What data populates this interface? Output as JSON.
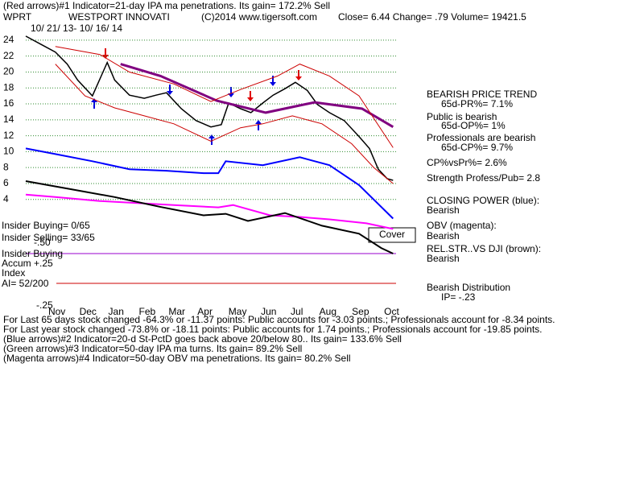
{
  "chart_data": {
    "type": "line",
    "subtitle": "(Red arrows)#1 Indicator=21-day IPA ma penetrations. Its gain= 172.2% Sell",
    "ticker": "WPRT",
    "title": "WESTPORT INNOVATI",
    "copyright": "(C)2014 www.tigersoft.com",
    "quote": "Close=  6.44  Change= .79 Volume= 19421.5",
    "date_range": "10/ 21/ 13- 10/ 16/ 14",
    "ylim": [
      -3,
      25
    ],
    "yticks": [
      24,
      22,
      20,
      18,
      16,
      14,
      12,
      10,
      8,
      6,
      4
    ],
    "xlim": [
      0,
      250
    ],
    "xticks": [
      {
        "value": 21,
        "label": "Nov"
      },
      {
        "value": 42,
        "label": "Dec"
      },
      {
        "value": 61,
        "label": "Jan"
      },
      {
        "value": 82,
        "label": "Feb"
      },
      {
        "value": 102,
        "label": "Mar"
      },
      {
        "value": 121,
        "label": "Apr"
      },
      {
        "value": 143,
        "label": "May"
      },
      {
        "value": 164,
        "label": "Jun"
      },
      {
        "value": 183,
        "label": "Jul"
      },
      {
        "value": 204,
        "label": "Aug"
      },
      {
        "value": 226,
        "label": "Sep"
      },
      {
        "value": 247,
        "label": "Oct"
      }
    ],
    "grid": true,
    "series": [
      {
        "color": "#000000",
        "width": 1.5,
        "x": [
          0,
          10,
          20,
          28,
          35,
          45,
          55,
          60,
          70,
          80,
          88,
          95,
          105,
          115,
          125,
          132,
          137,
          145,
          152,
          160,
          167,
          175,
          182,
          190,
          197,
          205,
          215,
          225,
          232,
          238,
          244,
          248
        ],
        "values": [
          24.5,
          23.5,
          22.5,
          21,
          19,
          17,
          21.2,
          19,
          17.1,
          16.7,
          17.1,
          17.4,
          15.4,
          13.9,
          13.1,
          13.4,
          16.1,
          15.4,
          14.9,
          16.1,
          17.1,
          17.9,
          18.7,
          17.7,
          15.9,
          14.9,
          13.9,
          11.9,
          10.4,
          7.8,
          6.6,
          6.4
        ]
      },
      {
        "color": "#800080",
        "width": 3,
        "x": [
          64,
          91,
          129,
          162,
          195,
          227,
          248
        ],
        "values": [
          21,
          19.5,
          16.4,
          14.9,
          16.2,
          15.4,
          13.1
        ]
      },
      {
        "color": "#cc0000",
        "width": 1,
        "x": [
          20,
          50,
          70,
          100,
          125,
          145,
          170,
          185,
          205,
          225,
          248
        ],
        "values": [
          23.2,
          22.2,
          20,
          18.5,
          16.3,
          17.8,
          19.5,
          21,
          19.5,
          17,
          10.5
        ]
      },
      {
        "color": "#cc0000",
        "width": 1,
        "x": [
          20,
          40,
          60,
          80,
          100,
          125,
          145,
          160,
          180,
          200,
          220,
          235,
          248
        ],
        "values": [
          21,
          17,
          15.5,
          14.5,
          13.5,
          11.3,
          13,
          13.5,
          14.5,
          13.5,
          11,
          8,
          6
        ]
      },
      {
        "color": "#0000ff",
        "width": 2,
        "x": [
          0,
          20,
          45,
          70,
          95,
          120,
          130,
          135,
          160,
          185,
          205,
          225,
          248
        ],
        "values": [
          10.4,
          9.7,
          8.8,
          7.8,
          7.6,
          7.3,
          7.3,
          8.8,
          8.3,
          9.3,
          8.3,
          5.8,
          1.6
        ]
      },
      {
        "color": "#ff00ff",
        "width": 2,
        "x": [
          0,
          20,
          50,
          100,
          130,
          140,
          165,
          185,
          205,
          230,
          248
        ],
        "values": [
          4.6,
          4.3,
          3.8,
          3.3,
          3.0,
          3.3,
          2.0,
          1.8,
          1.5,
          1.0,
          0.3
        ]
      },
      {
        "color": "#000000",
        "width": 2,
        "x": [
          0,
          30,
          60,
          90,
          120,
          135,
          150,
          175,
          200,
          225,
          240,
          248
        ],
        "values": [
          6.3,
          5.3,
          4.3,
          3.1,
          2.0,
          2.2,
          1.3,
          2.3,
          0.7,
          -0.3,
          -2.1,
          -2.8
        ]
      }
    ],
    "right_panel": [
      "BEARISH PRICE TREND",
      "65d-PR%= 7.1%",
      "Public is bearish",
      "65d-OP%= 1%",
      "Professionals are bearish",
      "65d-CP%= 9.7%",
      "CP%vsPr%=  2.6%",
      "Strength Profess/Pub= 2.8",
      "CLOSING POWER (blue):",
      "Bearish",
      "OBV (magenta):",
      "Bearish",
      "REL.STR..VS DJI (brown):",
      "Bearish",
      "Bearish Distribution",
      "IP= -.23"
    ],
    "left_panel": [
      "Insider Buying= 0/65",
      "Insider Selling= 33/65",
      "-.50",
      "Insider Buying",
      "Accum  +.25",
      "Index",
      "AI= 52/200",
      "-.25"
    ],
    "signal": "Cover",
    "footer_lines": [
      "For Last 65 days stock changed -64.3% or -11.37 points:  Public accounts for -3.03 points.;  Professionals account for -8.34 points.",
      "For Last year stock changed -73.8% or -18.11 points:  Public accounts for  1.74 points.;  Professionals account for -19.85 points.",
      "(Blue arrows)#2 Indicator=20-d St-PctD goes back above 20/below 80.. Its gain= 133.6% Sell",
      "(Green arrows)#3 Indicator=50-day IPA ma turns. Its gain= 89.2% Sell",
      "(Magenta arrows)#4 Indicator=50-day OBV ma penetrations. Its gain= 80.2% Sell"
    ]
  }
}
